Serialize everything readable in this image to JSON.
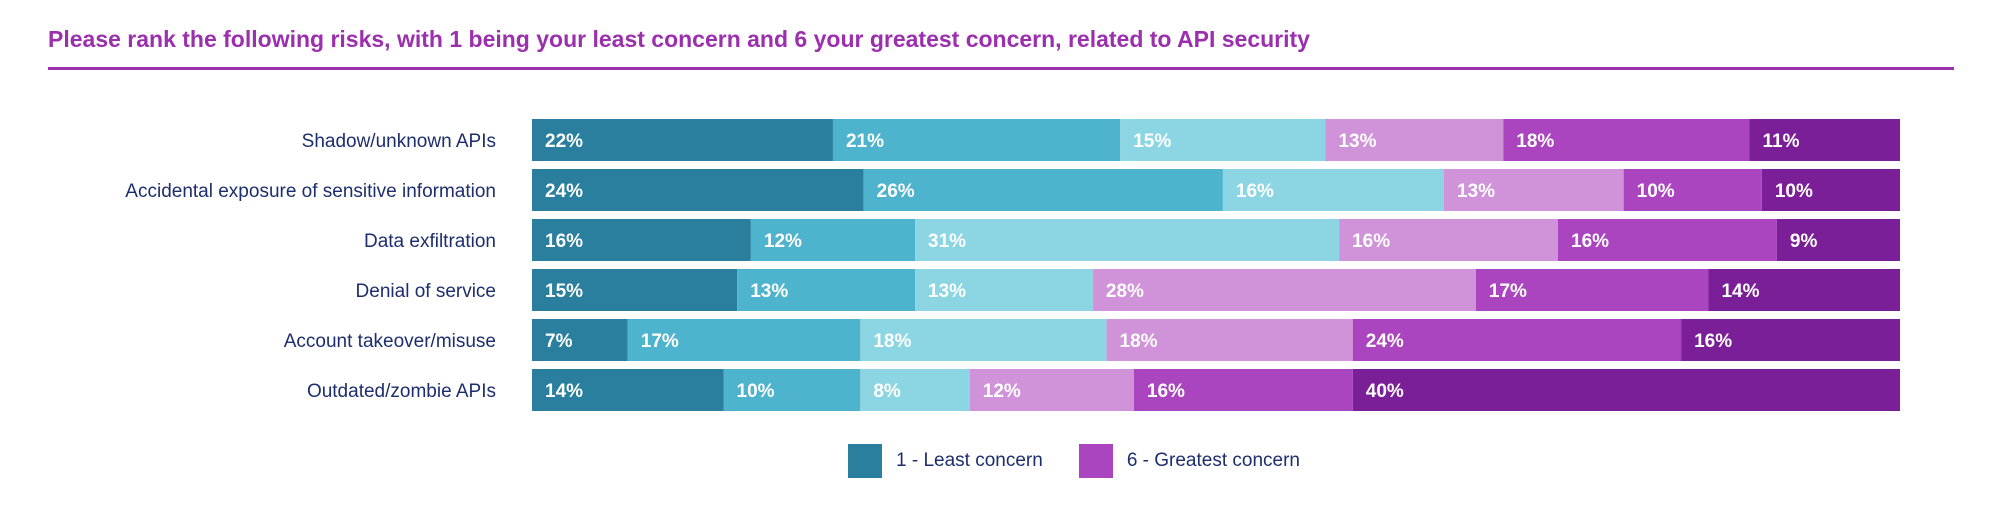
{
  "title": "Please rank the following risks, with 1 being your least concern and 6 your greatest concern, related to API security",
  "legend": [
    {
      "label": "1 - Least concern",
      "color": "#2a7f9f"
    },
    {
      "label": "6 - Greatest concern",
      "color": "#ab45bf"
    }
  ],
  "colors": [
    "#2a7f9f",
    "#4eb3cc",
    "#8cd6e3",
    "#d092d8",
    "#ab45bf",
    "#7a1f97"
  ],
  "chart_data": {
    "type": "bar",
    "orientation": "horizontal",
    "stacked": true,
    "categories": [
      "Shadow/unknown APIs",
      "Accidental exposure of sensitive information",
      "Data exfiltration",
      "Denial of service",
      "Account takeover/misuse",
      "Outdated/zombie APIs"
    ],
    "series": [
      {
        "name": "1 - Least concern",
        "values": [
          22,
          24,
          16,
          15,
          7,
          14
        ]
      },
      {
        "values": [
          21,
          26,
          12,
          13,
          17,
          10
        ]
      },
      {
        "values": [
          15,
          16,
          31,
          13,
          18,
          8
        ]
      },
      {
        "values": [
          13,
          13,
          16,
          28,
          18,
          12
        ]
      },
      {
        "values": [
          18,
          10,
          16,
          17,
          24,
          16
        ]
      },
      {
        "name": "6 - Greatest concern",
        "values": [
          11,
          10,
          9,
          14,
          16,
          40
        ]
      }
    ],
    "value_suffix": "%",
    "legend_position": "bottom"
  }
}
